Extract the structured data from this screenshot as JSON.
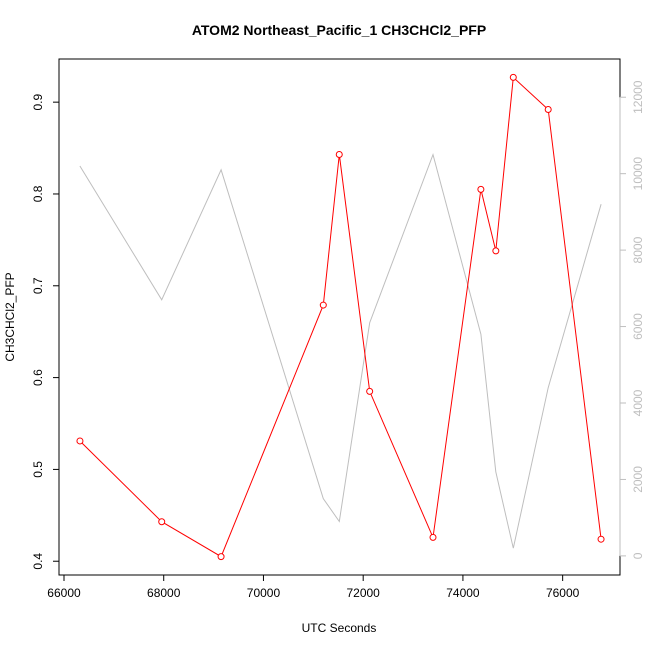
{
  "chart_data": {
    "type": "line",
    "title": "ATOM2 Northeast_Pacific_1 CH3CHCl2_PFP",
    "xlabel": "UTC Seconds",
    "ylabel": "CH3CHCl2_PFP",
    "xlim": [
      65900,
      77150
    ],
    "ylim": [
      0.385,
      0.947
    ],
    "y2lim": [
      -500,
      13000
    ],
    "x_ticks": [
      66000,
      68000,
      70000,
      72000,
      74000,
      76000
    ],
    "y_ticks": [
      0.4,
      0.5,
      0.6,
      0.7,
      0.8,
      0.9
    ],
    "y2_ticks": [
      0,
      2000,
      4000,
      6000,
      8000,
      10000,
      12000
    ],
    "grid": false,
    "series": [
      {
        "axis": "left",
        "color": "#ff0000",
        "marker": "open-circle",
        "x": [
          66320,
          67960,
          69150,
          71200,
          71520,
          72130,
          73400,
          74360,
          74660,
          75010,
          75710,
          76770
        ],
        "y": [
          0.531,
          0.443,
          0.405,
          0.679,
          0.843,
          0.585,
          0.426,
          0.805,
          0.738,
          0.927,
          0.892,
          0.424
        ]
      },
      {
        "axis": "right",
        "color": "#bebebe",
        "marker": "none",
        "x": [
          66320,
          67960,
          69150,
          71200,
          71520,
          72130,
          73400,
          74360,
          74660,
          75010,
          75710,
          76770
        ],
        "y": [
          10200,
          6700,
          10100,
          1500,
          900,
          6100,
          10500,
          5800,
          2200,
          200,
          4400,
          9200
        ]
      }
    ]
  }
}
